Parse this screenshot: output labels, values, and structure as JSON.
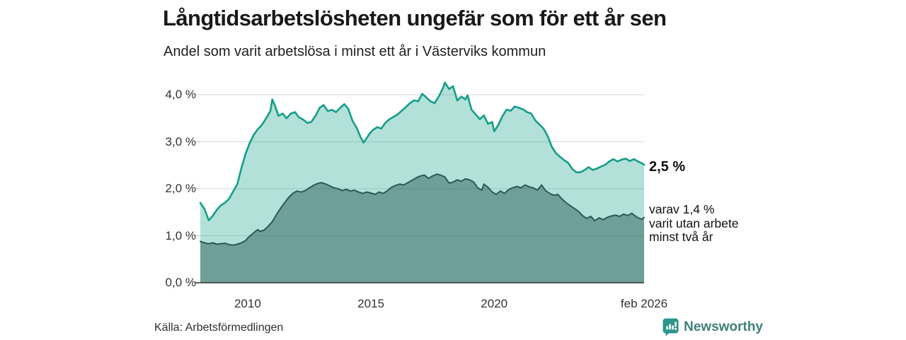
{
  "header": {},
  "footer": {
    "source": "Källa: Arbetsförmedlingen",
    "brand_name": "Newsworthy"
  },
  "colors": {
    "accent_teal": "#149e88",
    "dark_teal": "#2b5955",
    "light_fill": "rgba(20,158,136,0.32)",
    "dark_fill": "rgba(35,85,80,0.47)",
    "grid": "#d9d9d9",
    "tick_stub": "#c4c4c4",
    "axis_line": "#333333",
    "brand_icon_teal": "#2f948a",
    "brand_text_teal": "#41807a"
  },
  "chart_data": {
    "type": "area",
    "title": "Långtidsarbetslösheten ungefär som för ett år sen",
    "subtitle": "Andel som varit arbetslösa i minst ett år i Västerviks kommun",
    "grid": "horizontal",
    "legend": "none",
    "annotations": {
      "end_label_total": "2,5 %",
      "end_label_breakdown": [
        "varav 1,4 %",
        "varit utan arbete",
        "minst två år"
      ]
    },
    "x_axis": {
      "range": [
        2008.08,
        2026.08
      ],
      "ticks": [
        {
          "value": 2010,
          "label": "2010"
        },
        {
          "value": 2015,
          "label": "2015"
        },
        {
          "value": 2020,
          "label": "2020"
        },
        {
          "value": 2026.08,
          "label": "feb 2026"
        }
      ]
    },
    "y_axis": {
      "range": [
        0,
        4.4
      ],
      "unit": "%",
      "ticks": [
        {
          "value": 0,
          "label": "0,0 %"
        },
        {
          "value": 1,
          "label": "1,0 %"
        },
        {
          "value": 2,
          "label": "2,0 %"
        },
        {
          "value": 3,
          "label": "3,0 %"
        },
        {
          "value": 4,
          "label": "4,0 %"
        }
      ]
    },
    "series": [
      {
        "name": "Arbetslösa minst ett år",
        "end_value": 2.5,
        "points": [
          [
            2008.08,
            1.7
          ],
          [
            2008.25,
            1.57
          ],
          [
            2008.42,
            1.33
          ],
          [
            2008.58,
            1.42
          ],
          [
            2008.75,
            1.55
          ],
          [
            2008.92,
            1.65
          ],
          [
            2009.08,
            1.7
          ],
          [
            2009.25,
            1.79
          ],
          [
            2009.42,
            1.95
          ],
          [
            2009.58,
            2.1
          ],
          [
            2009.75,
            2.45
          ],
          [
            2009.92,
            2.75
          ],
          [
            2010.08,
            2.97
          ],
          [
            2010.25,
            3.15
          ],
          [
            2010.42,
            3.27
          ],
          [
            2010.58,
            3.36
          ],
          [
            2010.75,
            3.5
          ],
          [
            2010.92,
            3.65
          ],
          [
            2011.0,
            3.9
          ],
          [
            2011.1,
            3.78
          ],
          [
            2011.25,
            3.55
          ],
          [
            2011.42,
            3.6
          ],
          [
            2011.58,
            3.5
          ],
          [
            2011.75,
            3.6
          ],
          [
            2011.92,
            3.63
          ],
          [
            2012.08,
            3.52
          ],
          [
            2012.25,
            3.47
          ],
          [
            2012.42,
            3.4
          ],
          [
            2012.58,
            3.42
          ],
          [
            2012.75,
            3.55
          ],
          [
            2012.92,
            3.72
          ],
          [
            2013.08,
            3.78
          ],
          [
            2013.25,
            3.65
          ],
          [
            2013.42,
            3.68
          ],
          [
            2013.58,
            3.63
          ],
          [
            2013.75,
            3.72
          ],
          [
            2013.92,
            3.8
          ],
          [
            2014.08,
            3.7
          ],
          [
            2014.25,
            3.45
          ],
          [
            2014.42,
            3.3
          ],
          [
            2014.58,
            3.1
          ],
          [
            2014.7,
            2.98
          ],
          [
            2014.83,
            3.08
          ],
          [
            2014.96,
            3.18
          ],
          [
            2015.08,
            3.25
          ],
          [
            2015.25,
            3.31
          ],
          [
            2015.42,
            3.28
          ],
          [
            2015.58,
            3.4
          ],
          [
            2015.75,
            3.48
          ],
          [
            2015.92,
            3.53
          ],
          [
            2016.08,
            3.58
          ],
          [
            2016.25,
            3.66
          ],
          [
            2016.42,
            3.74
          ],
          [
            2016.58,
            3.82
          ],
          [
            2016.75,
            3.88
          ],
          [
            2016.92,
            3.86
          ],
          [
            2017.08,
            4.02
          ],
          [
            2017.25,
            3.94
          ],
          [
            2017.42,
            3.86
          ],
          [
            2017.58,
            3.82
          ],
          [
            2017.75,
            3.96
          ],
          [
            2017.92,
            4.14
          ],
          [
            2018.0,
            4.26
          ],
          [
            2018.17,
            4.12
          ],
          [
            2018.33,
            4.18
          ],
          [
            2018.5,
            3.88
          ],
          [
            2018.67,
            3.96
          ],
          [
            2018.83,
            3.9
          ],
          [
            2018.92,
            3.99
          ],
          [
            2019.08,
            3.68
          ],
          [
            2019.25,
            3.58
          ],
          [
            2019.42,
            3.48
          ],
          [
            2019.58,
            3.56
          ],
          [
            2019.75,
            3.38
          ],
          [
            2019.92,
            3.42
          ],
          [
            2020.0,
            3.22
          ],
          [
            2020.17,
            3.36
          ],
          [
            2020.33,
            3.54
          ],
          [
            2020.5,
            3.68
          ],
          [
            2020.67,
            3.66
          ],
          [
            2020.83,
            3.75
          ],
          [
            2021.0,
            3.72
          ],
          [
            2021.17,
            3.69
          ],
          [
            2021.33,
            3.63
          ],
          [
            2021.5,
            3.6
          ],
          [
            2021.67,
            3.45
          ],
          [
            2021.83,
            3.37
          ],
          [
            2022.0,
            3.28
          ],
          [
            2022.17,
            3.12
          ],
          [
            2022.33,
            2.9
          ],
          [
            2022.5,
            2.76
          ],
          [
            2022.67,
            2.68
          ],
          [
            2022.83,
            2.61
          ],
          [
            2023.0,
            2.55
          ],
          [
            2023.17,
            2.42
          ],
          [
            2023.33,
            2.35
          ],
          [
            2023.5,
            2.35
          ],
          [
            2023.67,
            2.4
          ],
          [
            2023.83,
            2.46
          ],
          [
            2024.0,
            2.4
          ],
          [
            2024.17,
            2.43
          ],
          [
            2024.33,
            2.47
          ],
          [
            2024.5,
            2.51
          ],
          [
            2024.67,
            2.58
          ],
          [
            2024.83,
            2.63
          ],
          [
            2025.0,
            2.58
          ],
          [
            2025.17,
            2.62
          ],
          [
            2025.33,
            2.64
          ],
          [
            2025.5,
            2.59
          ],
          [
            2025.67,
            2.63
          ],
          [
            2025.83,
            2.58
          ],
          [
            2026.0,
            2.54
          ],
          [
            2026.08,
            2.51
          ]
        ]
      },
      {
        "name": "Utan arbete minst två år",
        "end_value": 1.4,
        "points": [
          [
            2008.08,
            0.88
          ],
          [
            2008.25,
            0.85
          ],
          [
            2008.42,
            0.83
          ],
          [
            2008.58,
            0.85
          ],
          [
            2008.75,
            0.82
          ],
          [
            2008.92,
            0.83
          ],
          [
            2009.08,
            0.84
          ],
          [
            2009.25,
            0.81
          ],
          [
            2009.42,
            0.8
          ],
          [
            2009.58,
            0.82
          ],
          [
            2009.75,
            0.85
          ],
          [
            2009.92,
            0.9
          ],
          [
            2010.0,
            0.95
          ],
          [
            2010.17,
            1.03
          ],
          [
            2010.33,
            1.1
          ],
          [
            2010.42,
            1.13
          ],
          [
            2010.5,
            1.09
          ],
          [
            2010.67,
            1.12
          ],
          [
            2010.83,
            1.2
          ],
          [
            2011.0,
            1.3
          ],
          [
            2011.17,
            1.45
          ],
          [
            2011.33,
            1.58
          ],
          [
            2011.5,
            1.7
          ],
          [
            2011.67,
            1.82
          ],
          [
            2011.83,
            1.9
          ],
          [
            2012.0,
            1.95
          ],
          [
            2012.17,
            1.93
          ],
          [
            2012.33,
            1.96
          ],
          [
            2012.5,
            2.02
          ],
          [
            2012.67,
            2.07
          ],
          [
            2012.83,
            2.11
          ],
          [
            2013.0,
            2.13
          ],
          [
            2013.17,
            2.1
          ],
          [
            2013.33,
            2.06
          ],
          [
            2013.5,
            2.02
          ],
          [
            2013.67,
            2.0
          ],
          [
            2013.83,
            1.96
          ],
          [
            2014.0,
            1.99
          ],
          [
            2014.17,
            1.95
          ],
          [
            2014.33,
            1.97
          ],
          [
            2014.5,
            1.93
          ],
          [
            2014.67,
            1.9
          ],
          [
            2014.83,
            1.93
          ],
          [
            2015.0,
            1.91
          ],
          [
            2015.17,
            1.88
          ],
          [
            2015.33,
            1.93
          ],
          [
            2015.5,
            1.9
          ],
          [
            2015.67,
            1.96
          ],
          [
            2015.83,
            2.03
          ],
          [
            2016.0,
            2.07
          ],
          [
            2016.17,
            2.1
          ],
          [
            2016.33,
            2.08
          ],
          [
            2016.5,
            2.13
          ],
          [
            2016.67,
            2.18
          ],
          [
            2016.83,
            2.23
          ],
          [
            2017.0,
            2.27
          ],
          [
            2017.17,
            2.29
          ],
          [
            2017.33,
            2.22
          ],
          [
            2017.5,
            2.27
          ],
          [
            2017.67,
            2.31
          ],
          [
            2017.83,
            2.29
          ],
          [
            2018.0,
            2.25
          ],
          [
            2018.17,
            2.12
          ],
          [
            2018.33,
            2.14
          ],
          [
            2018.5,
            2.19
          ],
          [
            2018.67,
            2.16
          ],
          [
            2018.83,
            2.21
          ],
          [
            2019.0,
            2.19
          ],
          [
            2019.17,
            2.14
          ],
          [
            2019.33,
            2.02
          ],
          [
            2019.5,
            1.97
          ],
          [
            2019.58,
            2.1
          ],
          [
            2019.75,
            2.03
          ],
          [
            2019.92,
            1.93
          ],
          [
            2020.08,
            1.88
          ],
          [
            2020.25,
            1.95
          ],
          [
            2020.42,
            1.9
          ],
          [
            2020.58,
            1.98
          ],
          [
            2020.75,
            2.02
          ],
          [
            2020.92,
            2.05
          ],
          [
            2021.08,
            2.02
          ],
          [
            2021.25,
            2.08
          ],
          [
            2021.42,
            2.04
          ],
          [
            2021.58,
            2.02
          ],
          [
            2021.75,
            1.97
          ],
          [
            2021.92,
            2.08
          ],
          [
            2022.08,
            1.96
          ],
          [
            2022.25,
            1.9
          ],
          [
            2022.42,
            1.86
          ],
          [
            2022.58,
            1.88
          ],
          [
            2022.75,
            1.78
          ],
          [
            2022.92,
            1.7
          ],
          [
            2023.08,
            1.64
          ],
          [
            2023.25,
            1.58
          ],
          [
            2023.42,
            1.52
          ],
          [
            2023.58,
            1.43
          ],
          [
            2023.75,
            1.37
          ],
          [
            2023.92,
            1.41
          ],
          [
            2024.08,
            1.32
          ],
          [
            2024.25,
            1.38
          ],
          [
            2024.42,
            1.34
          ],
          [
            2024.58,
            1.39
          ],
          [
            2024.75,
            1.42
          ],
          [
            2024.92,
            1.44
          ],
          [
            2025.08,
            1.41
          ],
          [
            2025.25,
            1.46
          ],
          [
            2025.42,
            1.43
          ],
          [
            2025.58,
            1.48
          ],
          [
            2025.67,
            1.44
          ],
          [
            2025.83,
            1.38
          ],
          [
            2026.0,
            1.35
          ],
          [
            2026.08,
            1.39
          ]
        ]
      }
    ]
  }
}
